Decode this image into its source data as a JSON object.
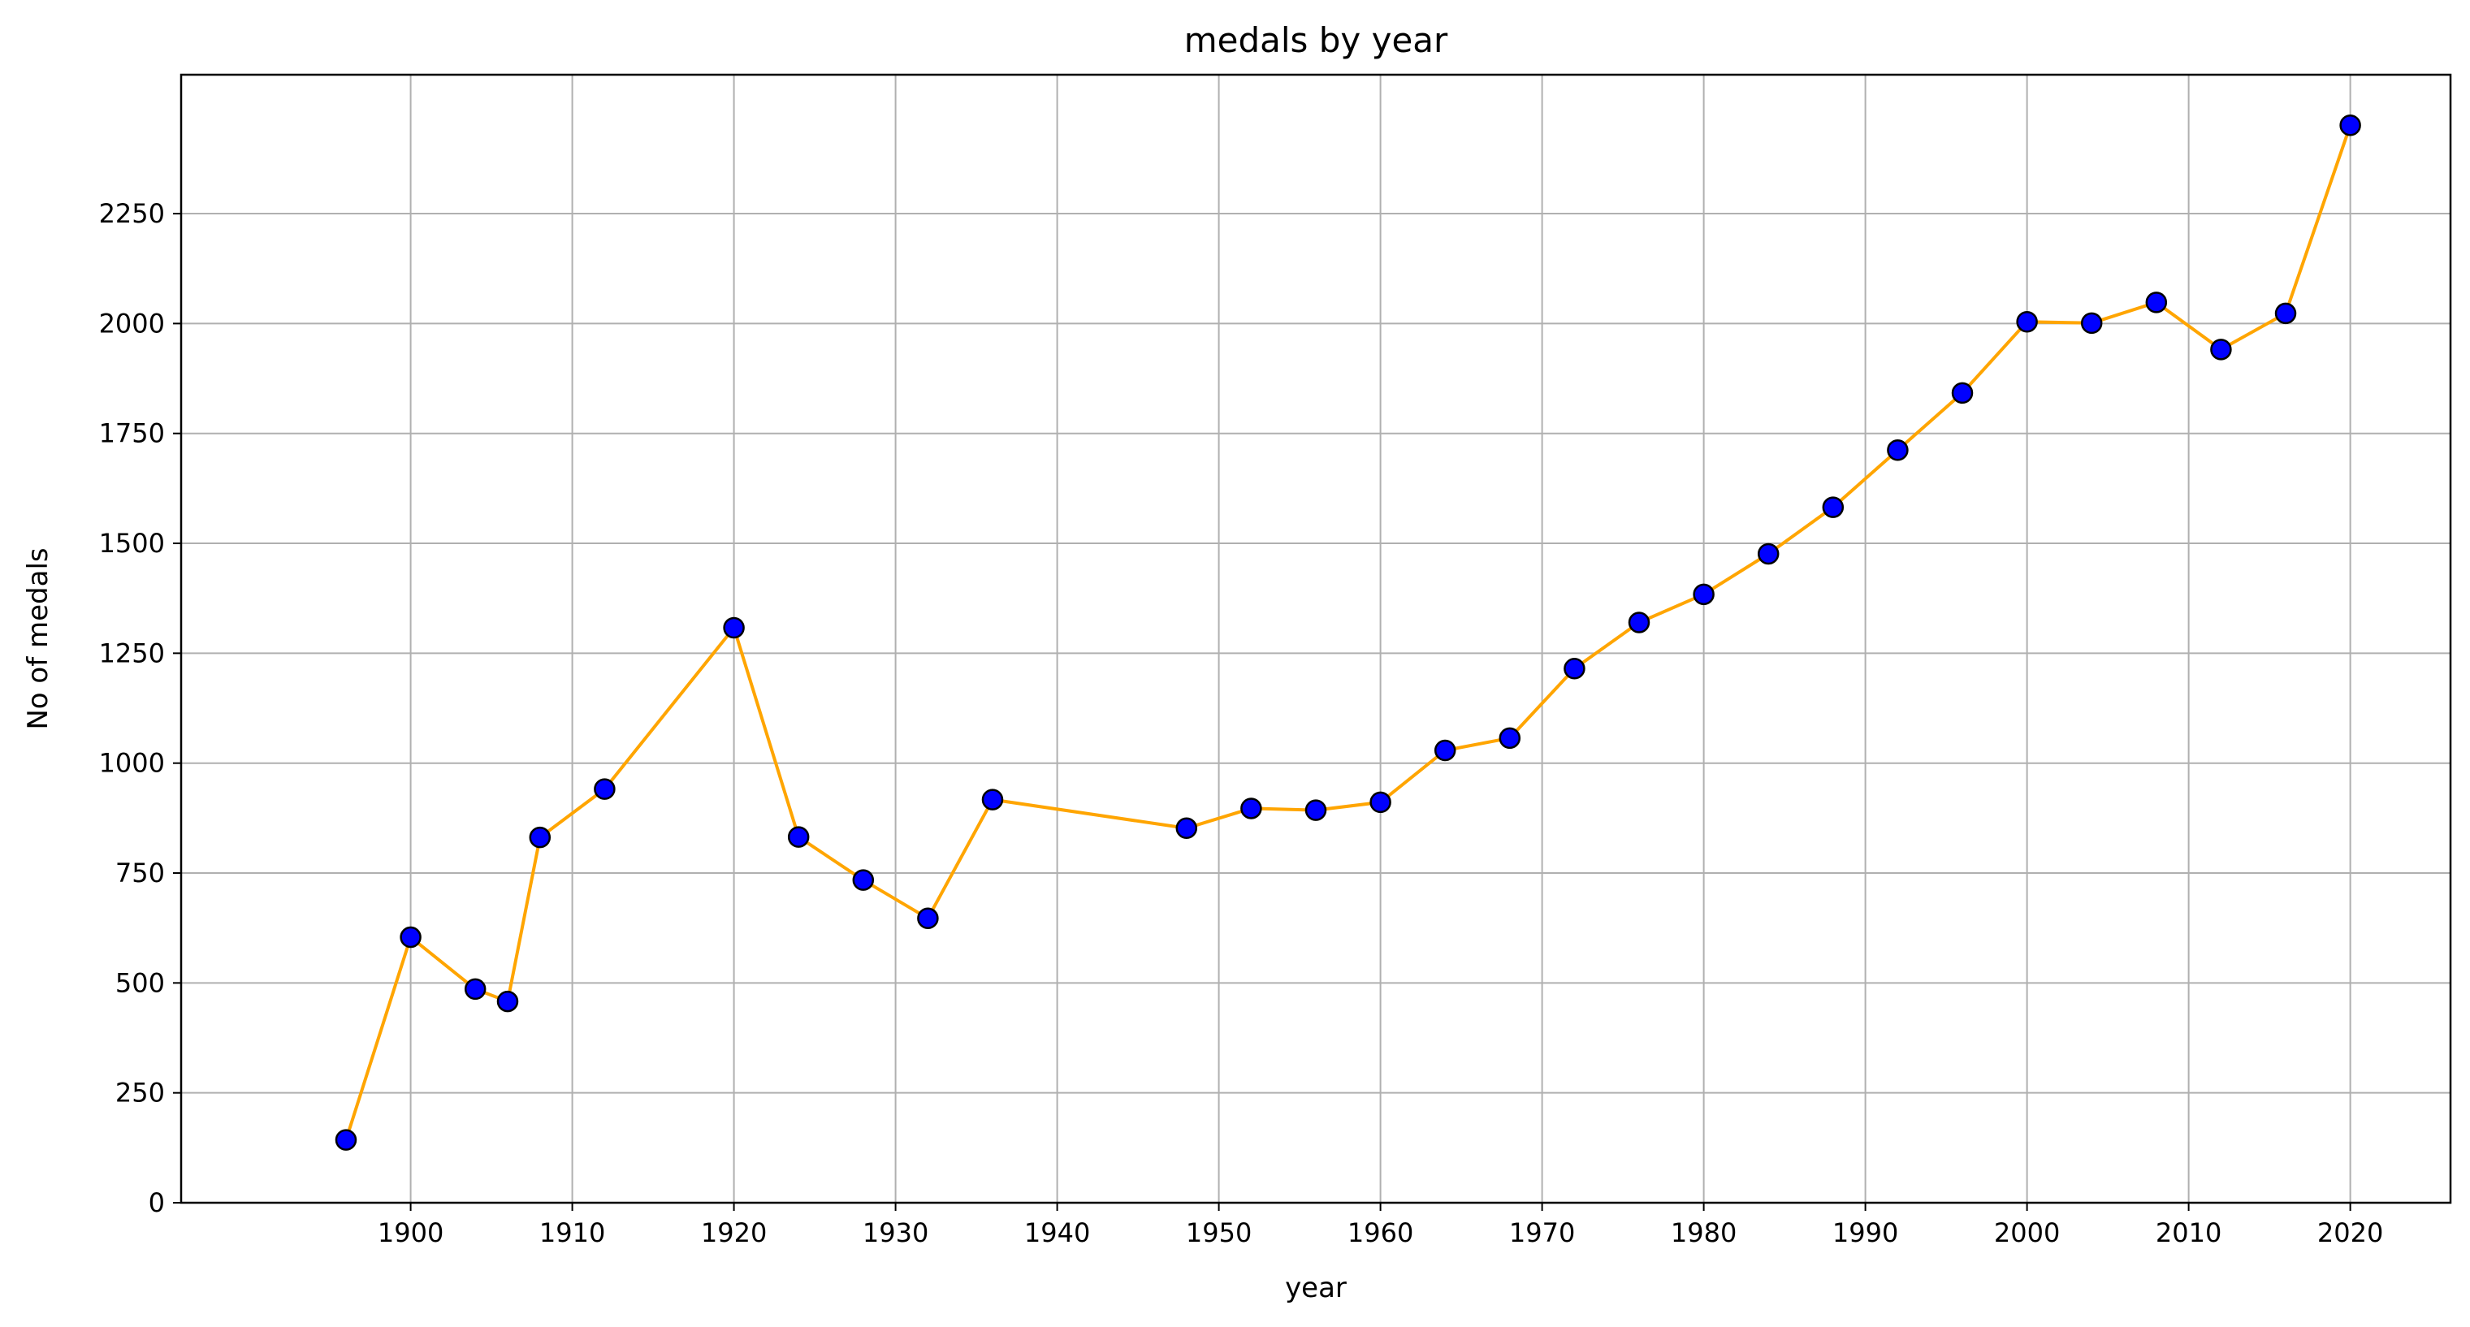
{
  "chart_data": {
    "type": "line",
    "title": "medals by year",
    "xlabel": "year",
    "ylabel": "No of medals",
    "xlim": [
      1885.8,
      2026.2
    ],
    "ylim": [
      0,
      2566
    ],
    "xticks": [
      1900,
      1910,
      1920,
      1930,
      1940,
      1950,
      1960,
      1970,
      1980,
      1990,
      2000,
      2010,
      2020
    ],
    "yticks": [
      0,
      250,
      500,
      750,
      1000,
      1250,
      1500,
      1750,
      2000,
      2250
    ],
    "grid": true,
    "line_color": "#ffa500",
    "marker_face_color": "#0000ff",
    "marker_edge_color": "#000000",
    "series": [
      {
        "x": [
          1896,
          1900,
          1904,
          1906,
          1908,
          1912,
          1920,
          1924,
          1928,
          1932,
          1936,
          1948,
          1952,
          1956,
          1960,
          1964,
          1968,
          1972,
          1976,
          1980,
          1984,
          1988,
          1992,
          1996,
          2000,
          2004,
          2008,
          2012,
          2016,
          2020
        ],
        "y": [
          143,
          604,
          486,
          458,
          831,
          941,
          1308,
          832,
          734,
          647,
          917,
          852,
          897,
          893,
          911,
          1029,
          1057,
          1215,
          1320,
          1384,
          1476,
          1582,
          1712,
          1842,
          2004,
          2001,
          2048,
          1941,
          2023,
          2451
        ]
      }
    ]
  }
}
